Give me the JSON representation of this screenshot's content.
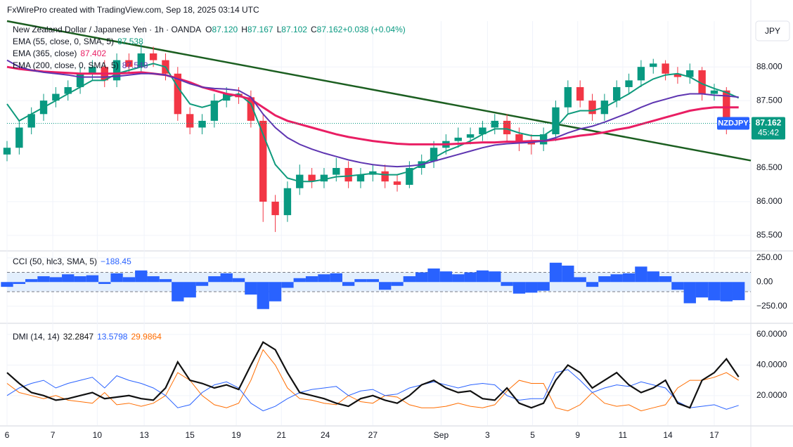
{
  "header": {
    "credit": "FxWirePro created with TradingView.com, Sep 18, 2025 03:14 UTC",
    "currency": "JPY"
  },
  "chart_data": [
    {
      "type": "candlestick",
      "title": "New Zealand Dollar / Japanese Yen · 1h · OANDA",
      "ohlc_legend": [
        {
          "label": "O",
          "value": "87.120"
        },
        {
          "label": "H",
          "value": "87.167"
        },
        {
          "label": "L",
          "value": "87.102"
        },
        {
          "label": "C",
          "value": "87.162"
        },
        {
          "label": "",
          "value": "+0.038 (+0.04%)"
        }
      ],
      "up_color": "#089981",
      "down_color": "#f23645",
      "open": [
        86.7,
        86.8,
        87.1,
        87.3,
        87.5,
        87.6,
        87.7,
        87.9,
        88.0,
        87.8,
        88.1,
        88.0,
        88.2,
        88.1,
        87.9,
        87.3,
        87.1,
        87.2,
        87.5,
        87.6,
        87.55,
        87.2,
        86.0,
        85.8,
        86.2,
        86.4,
        86.3,
        86.4,
        86.5,
        86.3,
        86.4,
        86.45,
        86.3,
        86.25,
        86.5,
        86.6,
        86.8,
        86.9,
        86.95,
        87.0,
        87.1,
        87.2,
        87.0,
        86.9,
        86.85,
        87.0,
        87.4,
        87.7,
        87.5,
        87.3,
        87.5,
        87.7,
        87.8,
        88.0,
        88.05,
        87.9,
        87.85,
        87.95,
        87.6,
        87.65,
        87.12
      ],
      "high": [
        86.9,
        87.2,
        87.4,
        87.6,
        87.7,
        87.8,
        88.0,
        88.1,
        88.1,
        88.2,
        88.2,
        88.35,
        88.3,
        88.2,
        88.0,
        87.4,
        87.3,
        87.6,
        87.7,
        87.7,
        87.65,
        87.3,
        86.1,
        86.3,
        86.55,
        86.5,
        86.5,
        86.65,
        86.6,
        86.5,
        86.55,
        86.55,
        86.4,
        86.6,
        86.7,
        86.9,
        87.0,
        87.1,
        87.1,
        87.2,
        87.3,
        87.3,
        87.1,
        87.0,
        87.1,
        87.5,
        87.8,
        87.8,
        87.6,
        87.6,
        87.8,
        87.9,
        88.1,
        88.12,
        88.1,
        88.0,
        88.05,
        88.0,
        87.75,
        87.7,
        87.167
      ],
      "low": [
        86.6,
        86.7,
        87.0,
        87.2,
        87.4,
        87.5,
        87.6,
        87.8,
        87.7,
        87.7,
        87.9,
        87.9,
        88.0,
        87.8,
        87.2,
        87.0,
        87.0,
        87.1,
        87.4,
        87.45,
        87.1,
        85.7,
        85.55,
        85.7,
        86.1,
        86.2,
        86.2,
        86.3,
        86.2,
        86.2,
        86.3,
        86.2,
        86.15,
        86.2,
        86.4,
        86.5,
        86.7,
        86.8,
        86.85,
        86.9,
        87.0,
        86.9,
        86.75,
        86.7,
        86.75,
        86.9,
        87.3,
        87.4,
        87.2,
        87.2,
        87.4,
        87.6,
        87.7,
        87.9,
        87.8,
        87.75,
        87.75,
        87.5,
        87.5,
        87.0,
        87.102
      ],
      "close": [
        86.8,
        87.1,
        87.3,
        87.5,
        87.6,
        87.7,
        87.9,
        88.0,
        87.8,
        88.1,
        88.0,
        88.2,
        88.1,
        87.9,
        87.3,
        87.1,
        87.2,
        87.5,
        87.6,
        87.55,
        87.2,
        86.0,
        85.8,
        86.2,
        86.4,
        86.3,
        86.4,
        86.5,
        86.3,
        86.4,
        86.45,
        86.3,
        86.25,
        86.5,
        86.6,
        86.8,
        86.9,
        86.95,
        87.0,
        87.1,
        87.2,
        87.0,
        86.9,
        86.85,
        87.0,
        87.4,
        87.7,
        87.5,
        87.3,
        87.5,
        87.7,
        87.8,
        88.0,
        88.05,
        87.9,
        87.85,
        87.95,
        87.6,
        87.65,
        87.12,
        87.162
      ],
      "series": [
        {
          "name": "EMA (55, close, 0, SMA, 5)",
          "legend_value": "87.538",
          "color": "#0e9a7c",
          "width": 2,
          "values": [
            87.45,
            87.2,
            87.3,
            87.4,
            87.5,
            87.6,
            87.7,
            87.8,
            87.8,
            87.9,
            87.95,
            88.0,
            88.05,
            88.0,
            87.7,
            87.45,
            87.4,
            87.45,
            87.55,
            87.6,
            87.45,
            87.0,
            86.55,
            86.35,
            86.3,
            86.3,
            86.33,
            86.37,
            86.38,
            86.4,
            86.42,
            86.4,
            86.4,
            86.45,
            86.55,
            86.65,
            86.75,
            86.82,
            86.9,
            87.0,
            87.08,
            87.08,
            87.02,
            86.98,
            86.98,
            87.1,
            87.3,
            87.35,
            87.35,
            87.4,
            87.5,
            87.6,
            87.72,
            87.82,
            87.88,
            87.9,
            87.85,
            87.75,
            87.68,
            87.62,
            87.54
          ]
        },
        {
          "name": "EMA (365, close)",
          "legend_value": "87.402",
          "color": "#e91e63",
          "width": 3,
          "values": [
            88.0,
            87.97,
            87.95,
            87.93,
            87.92,
            87.91,
            87.9,
            87.9,
            87.9,
            87.9,
            87.91,
            87.92,
            87.9,
            87.88,
            87.83,
            87.77,
            87.7,
            87.65,
            87.6,
            87.57,
            87.52,
            87.4,
            87.28,
            87.2,
            87.15,
            87.1,
            87.05,
            87.0,
            86.96,
            86.93,
            86.9,
            86.88,
            86.86,
            86.85,
            86.85,
            86.85,
            86.85,
            86.86,
            86.87,
            86.88,
            86.88,
            86.89,
            86.89,
            86.9,
            86.9,
            86.92,
            86.95,
            86.98,
            87.0,
            87.03,
            87.07,
            87.1,
            87.15,
            87.2,
            87.25,
            87.3,
            87.35,
            87.38,
            87.4,
            87.4,
            87.4
          ]
        },
        {
          "name": "EMA (200, close, 0, SMA, 5)",
          "legend_value": "87.548",
          "color": "#5e35b1",
          "width": 2,
          "values": [
            88.1,
            88.0,
            87.95,
            87.92,
            87.9,
            87.88,
            87.85,
            87.85,
            87.85,
            87.86,
            87.88,
            87.9,
            87.9,
            87.88,
            87.82,
            87.75,
            87.7,
            87.68,
            87.67,
            87.65,
            87.55,
            87.3,
            87.1,
            86.95,
            86.85,
            86.78,
            86.72,
            86.67,
            86.62,
            86.58,
            86.55,
            86.53,
            86.52,
            86.53,
            86.55,
            86.6,
            86.65,
            86.7,
            86.75,
            86.8,
            86.84,
            86.86,
            86.87,
            86.88,
            86.9,
            86.95,
            87.02,
            87.08,
            87.12,
            87.18,
            87.25,
            87.32,
            87.4,
            87.47,
            87.52,
            87.57,
            87.6,
            87.6,
            87.58,
            87.57,
            87.55
          ]
        }
      ],
      "trendline": {
        "color": "#1b5e20",
        "x": [
          0,
          61
        ],
        "values": [
          88.68,
          86.61
        ]
      },
      "price_label": {
        "symbol": "NZDJPY",
        "price": "87.162",
        "countdown": "45:42"
      },
      "ylim": [
        85.29,
        88.68
      ],
      "yticks": [
        {
          "value": 85.5,
          "label": "85.500"
        },
        {
          "value": 86,
          "label": "86.000"
        },
        {
          "value": 86.5,
          "label": "86.500"
        },
        {
          "value": 87.5,
          "label": "87.500"
        },
        {
          "value": 88,
          "label": "88.000"
        }
      ],
      "xlim": [
        0,
        61
      ],
      "xticks": [
        {
          "value": 0,
          "label": "6"
        },
        {
          "value": 3.75,
          "label": "7"
        },
        {
          "value": 7.4,
          "label": "10"
        },
        {
          "value": 11.25,
          "label": "13"
        },
        {
          "value": 15,
          "label": "15"
        },
        {
          "value": 18.8,
          "label": "19"
        },
        {
          "value": 22.5,
          "label": "21"
        },
        {
          "value": 26.1,
          "label": "24"
        },
        {
          "value": 30,
          "label": "27"
        },
        {
          "value": 35.6,
          "label": "Sep"
        },
        {
          "value": 39.4,
          "label": "3"
        },
        {
          "value": 43.1,
          "label": "5"
        },
        {
          "value": 46.8,
          "label": "9"
        },
        {
          "value": 50.5,
          "label": "11"
        },
        {
          "value": 54.2,
          "label": "14"
        },
        {
          "value": 58,
          "label": "17"
        }
      ]
    },
    {
      "type": "bar",
      "title": "CCI (50, hlc3, SMA, 5)",
      "legend_value": "−188.45",
      "color": "#2962ff",
      "band": [
        -100,
        100
      ],
      "band_color": "#e3effd",
      "values": [
        -50,
        -20,
        30,
        60,
        50,
        80,
        60,
        70,
        -20,
        90,
        50,
        120,
        60,
        30,
        -200,
        -160,
        -40,
        60,
        90,
        40,
        -130,
        -280,
        -200,
        -60,
        40,
        60,
        80,
        90,
        -40,
        30,
        30,
        -80,
        -40,
        60,
        100,
        140,
        110,
        80,
        100,
        120,
        110,
        -40,
        -120,
        -110,
        -90,
        200,
        170,
        50,
        -50,
        60,
        80,
        90,
        160,
        110,
        60,
        -80,
        -220,
        -160,
        -190,
        -200,
        -188.45
      ],
      "ylim": [
        -413,
        315
      ],
      "yticks": [
        {
          "value": 250,
          "label": "250.00"
        },
        {
          "value": 0,
          "label": "0.00"
        },
        {
          "value": -250,
          "label": "−250.00"
        }
      ]
    },
    {
      "type": "line",
      "title": "DMI (14, 14)",
      "series": [
        {
          "legend_value": "32.2847",
          "color": "#111111",
          "width": 2.2,
          "values": [
            35,
            28,
            22,
            20,
            17,
            18,
            20,
            22,
            18,
            19,
            20,
            18,
            17,
            25,
            42,
            30,
            28,
            25,
            27,
            24,
            40,
            55,
            50,
            35,
            22,
            20,
            18,
            15,
            13,
            18,
            20,
            17,
            15,
            20,
            27,
            30,
            25,
            22,
            23,
            18,
            17,
            25,
            15,
            12,
            15,
            30,
            40,
            35,
            25,
            30,
            35,
            27,
            22,
            25,
            30,
            15,
            12,
            30,
            35,
            44,
            32.28
          ]
        },
        {
          "legend_value": "13.5798",
          "color": "#2962ff",
          "width": 1,
          "values": [
            20,
            25,
            28,
            30,
            25,
            28,
            30,
            32,
            25,
            33,
            30,
            28,
            25,
            20,
            12,
            14,
            22,
            27,
            29,
            25,
            15,
            10,
            13,
            18,
            22,
            24,
            25,
            26,
            20,
            23,
            24,
            20,
            21,
            25,
            27,
            29,
            27,
            25,
            27,
            28,
            27,
            20,
            17,
            18,
            18,
            35,
            37,
            30,
            22,
            25,
            27,
            26,
            29,
            27,
            25,
            16,
            12,
            13,
            14,
            11,
            13.58
          ]
        },
        {
          "legend_value": "29.9864",
          "color": "#ff6d00",
          "width": 1,
          "values": [
            28,
            22,
            20,
            18,
            20,
            17,
            16,
            15,
            22,
            14,
            15,
            13,
            15,
            20,
            35,
            30,
            20,
            14,
            12,
            15,
            30,
            50,
            40,
            25,
            18,
            17,
            15,
            14,
            20,
            16,
            15,
            20,
            19,
            14,
            12,
            12,
            13,
            15,
            13,
            12,
            14,
            23,
            30,
            28,
            28,
            12,
            10,
            14,
            22,
            15,
            13,
            14,
            10,
            12,
            14,
            25,
            30,
            30,
            32,
            35,
            29.99
          ]
        }
      ],
      "ylim": [
        0.6,
        66.4
      ],
      "yticks": [
        {
          "value": 20,
          "label": "20.0000"
        },
        {
          "value": 40,
          "label": "40.0000"
        },
        {
          "value": 60,
          "label": "60.0000"
        }
      ]
    }
  ]
}
